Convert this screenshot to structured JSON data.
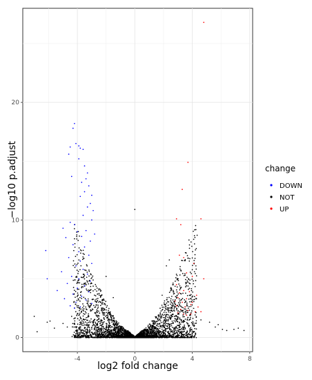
{
  "chart_data": {
    "type": "scatter",
    "xlabel": "log2 fold change",
    "ylabel": "−log10 p.adjust",
    "xlim": [
      -7.8,
      8.2
    ],
    "ylim": [
      -1.2,
      28.0
    ],
    "x_ticks": [
      -4,
      0,
      4,
      8
    ],
    "x_tick_labels": [
      "-4",
      "0",
      "4",
      "8"
    ],
    "y_ticks": [
      0,
      10,
      20
    ],
    "y_tick_labels": [
      "0",
      "10",
      "20"
    ],
    "grid": true,
    "legend": {
      "title": "change",
      "placement": "right",
      "entries": [
        {
          "label": "DOWN",
          "color": "#0000ff"
        },
        {
          "label": "NOT",
          "color": "#000000"
        },
        {
          "label": "UP",
          "color": "#ff0000"
        }
      ]
    },
    "series": [
      {
        "name": "DOWN",
        "color": "#0000ff",
        "points": [
          [
            -4.2,
            18.2
          ],
          [
            -4.3,
            17.8
          ],
          [
            -4.1,
            16.5
          ],
          [
            -3.9,
            16.3
          ],
          [
            -3.8,
            16.1
          ],
          [
            -3.6,
            16.0
          ],
          [
            -3.9,
            15.2
          ],
          [
            -4.6,
            15.6
          ],
          [
            -4.5,
            16.2
          ],
          [
            -3.5,
            14.6
          ],
          [
            -3.3,
            14.0
          ],
          [
            -3.4,
            13.5
          ],
          [
            -4.4,
            13.7
          ],
          [
            -3.7,
            13.2
          ],
          [
            -3.2,
            12.9
          ],
          [
            -3.5,
            12.4
          ],
          [
            -3.0,
            12.1
          ],
          [
            -3.8,
            12.0
          ],
          [
            -3.1,
            11.4
          ],
          [
            -3.3,
            11.1
          ],
          [
            -2.9,
            10.8
          ],
          [
            -3.6,
            10.4
          ],
          [
            -3.0,
            10.0
          ],
          [
            -4.5,
            9.8
          ],
          [
            -4.2,
            9.6
          ],
          [
            -5.0,
            9.3
          ],
          [
            -4.0,
            9.0
          ],
          [
            -3.4,
            9.1
          ],
          [
            -2.8,
            8.8
          ],
          [
            -3.7,
            8.6
          ],
          [
            -4.8,
            8.5
          ],
          [
            -3.1,
            8.2
          ],
          [
            -4.3,
            7.9
          ],
          [
            -3.5,
            7.7
          ],
          [
            -6.2,
            7.4
          ],
          [
            -3.9,
            7.3
          ],
          [
            -3.2,
            7.0
          ],
          [
            -4.6,
            6.8
          ],
          [
            -3.8,
            6.5
          ],
          [
            -3.0,
            6.3
          ],
          [
            -4.1,
            6.1
          ],
          [
            -3.6,
            5.8
          ],
          [
            -5.1,
            5.6
          ],
          [
            -3.3,
            5.4
          ],
          [
            -4.4,
            5.2
          ],
          [
            -3.9,
            5.0
          ],
          [
            -6.1,
            5.0
          ],
          [
            -3.1,
            4.8
          ],
          [
            -4.7,
            4.6
          ],
          [
            -3.5,
            4.4
          ],
          [
            -4.0,
            4.2
          ],
          [
            -5.4,
            4.0
          ],
          [
            -3.2,
            3.9
          ],
          [
            -4.3,
            3.7
          ],
          [
            -3.7,
            3.5
          ],
          [
            -4.9,
            3.3
          ],
          [
            -3.4,
            3.2
          ],
          [
            -4.1,
            3.0
          ],
          [
            -3.0,
            2.9
          ],
          [
            -4.5,
            2.7
          ],
          [
            -3.8,
            2.6
          ],
          [
            -4.2,
            2.5
          ]
        ]
      },
      {
        "name": "UP",
        "color": "#ff0000",
        "points": [
          [
            4.8,
            26.8
          ],
          [
            3.7,
            14.9
          ],
          [
            3.3,
            12.6
          ],
          [
            4.6,
            10.1
          ],
          [
            2.9,
            10.1
          ],
          [
            3.2,
            9.6
          ],
          [
            3.1,
            7.0
          ],
          [
            3.4,
            6.8
          ],
          [
            4.1,
            6.3
          ],
          [
            3.6,
            5.5
          ],
          [
            4.0,
            5.2
          ],
          [
            4.8,
            5.0
          ],
          [
            2.9,
            4.5
          ],
          [
            3.4,
            4.0
          ],
          [
            3.1,
            3.8
          ],
          [
            3.8,
            3.9
          ],
          [
            4.3,
            3.6
          ],
          [
            3.0,
            3.4
          ],
          [
            3.6,
            3.3
          ],
          [
            2.8,
            3.1
          ],
          [
            3.3,
            3.0
          ],
          [
            4.0,
            3.0
          ],
          [
            3.9,
            2.8
          ],
          [
            2.9,
            2.7
          ],
          [
            3.5,
            2.6
          ],
          [
            4.4,
            2.6
          ],
          [
            3.2,
            2.4
          ],
          [
            3.7,
            2.3
          ],
          [
            4.2,
            2.2
          ],
          [
            3.0,
            2.1
          ],
          [
            3.4,
            2.0
          ],
          [
            3.9,
            2.0
          ],
          [
            4.6,
            2.2
          ],
          [
            3.6,
            1.9
          ]
        ]
      },
      {
        "name": "NOT",
        "color": "#000000",
        "points": [
          [
            0.0,
            10.9
          ],
          [
            -7.0,
            1.8
          ],
          [
            -6.8,
            0.5
          ],
          [
            -6.1,
            1.3
          ],
          [
            -5.9,
            1.4
          ],
          [
            -5.0,
            1.2
          ],
          [
            -4.7,
            0.9
          ],
          [
            -4.4,
            1.8
          ],
          [
            -5.6,
            0.8
          ],
          [
            6.9,
            0.7
          ],
          [
            7.2,
            0.8
          ],
          [
            7.6,
            0.6
          ],
          [
            6.4,
            0.6
          ],
          [
            5.6,
            0.9
          ],
          [
            5.8,
            1.1
          ],
          [
            6.1,
            0.7
          ],
          [
            4.6,
            1.5
          ],
          [
            5.2,
            1.3
          ],
          [
            -1.5,
            3.4
          ],
          [
            1.9,
            3.6
          ],
          [
            -2.0,
            5.2
          ],
          [
            2.2,
            6.1
          ],
          [
            2.4,
            6.6
          ]
        ],
        "cloud": {
          "point_count": 4000,
          "description_shape": "V-shaped band widening with |log2 fold change|"
        }
      }
    ]
  }
}
